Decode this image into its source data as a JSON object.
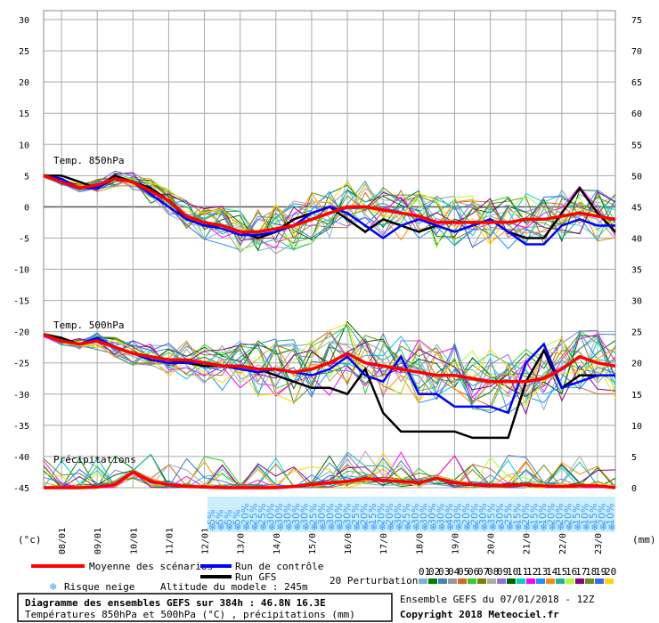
{
  "chart_data": {
    "type": "line",
    "title": "Diagramme des ensembles GEFS sur 384h : 46.8N 16.3E",
    "subtitle": "Températures 850hPa et 500hPa (°C) , précipitations (mm)",
    "left_axis": {
      "unit": "(°c)",
      "ticks": [
        30,
        25,
        20,
        15,
        10,
        5,
        0,
        -5,
        -10,
        -15,
        -20,
        -25,
        -30,
        -35,
        -40,
        -45
      ]
    },
    "right_axis": {
      "unit": "(mm)",
      "ticks": [
        75,
        70,
        65,
        60,
        55,
        50,
        45,
        40,
        35,
        30,
        25,
        20,
        15,
        10,
        5,
        0
      ]
    },
    "x_ticks": [
      "08/01",
      "09/01",
      "10/01",
      "11/01",
      "12/01",
      "13/01",
      "14/01",
      "15/01",
      "16/01",
      "17/01",
      "18/01",
      "19/01",
      "20/01",
      "21/01",
      "22/01",
      "23/01"
    ],
    "panel_labels": [
      "Temp. 850hPa",
      "Temp. 500hPa",
      "Précipitations"
    ],
    "snow_risk_percent": [
      "5%",
      "5%",
      "5%",
      "5%",
      "20%",
      "25%",
      "25%",
      "30%",
      "30%",
      "30%",
      "30%",
      "30%",
      "25%",
      "30%",
      "30%",
      "30%",
      "30%",
      "25%",
      "20%",
      "15%",
      "20%",
      "20%",
      "30%",
      "25%",
      "30%",
      "30%",
      "30%",
      "30%",
      "40%",
      "30%",
      "20%",
      "20%",
      "30%",
      "35%",
      "30%",
      "25%",
      "15%",
      "20%",
      "15%",
      "10%",
      "20%",
      "20%",
      "20%",
      "15%",
      "10%",
      "15%",
      "20%",
      "10%"
    ],
    "x_hours": [
      0,
      12,
      24,
      36,
      48,
      60,
      72,
      84,
      96,
      108,
      120,
      132,
      144,
      156,
      168,
      180,
      192,
      204,
      216,
      228,
      240,
      252,
      264,
      276,
      288,
      300,
      312,
      324,
      336,
      348,
      360,
      372,
      384
    ],
    "t850_mean": [
      5,
      4,
      3,
      3.5,
      4.5,
      4,
      2.5,
      1,
      -1.5,
      -2.5,
      -3,
      -4,
      -4,
      -3.5,
      -3,
      -2,
      -1,
      0,
      0,
      -0.5,
      -1,
      -1.5,
      -2.5,
      -2.5,
      -2.5,
      -2.5,
      -2.5,
      -2,
      -2,
      -1.5,
      -1,
      -1.5,
      -2
    ],
    "t850_control": [
      5,
      4.5,
      3,
      3,
      4.5,
      4,
      2,
      0,
      -2,
      -3,
      -3.5,
      -4.5,
      -4.5,
      -4,
      -3,
      -1,
      0,
      -1,
      -3,
      -5,
      -3,
      -2,
      -3,
      -4,
      -3,
      -2,
      -4,
      -6,
      -6,
      -3,
      -2,
      -3,
      -3
    ],
    "t850_gfs": [
      5,
      5,
      4,
      3,
      5,
      4,
      3,
      1,
      -2,
      -3,
      -3,
      -4,
      -5,
      -4,
      -2,
      -1,
      0,
      -2,
      -4,
      -2,
      -3,
      -4,
      -3,
      -4,
      -3,
      -2,
      -4,
      -5,
      -5,
      -1,
      3,
      -1,
      -4
    ],
    "t500_mean": [
      -20.5,
      -21.5,
      -22,
      -21.5,
      -22.5,
      -23.5,
      -24,
      -24.5,
      -24.5,
      -25,
      -25.5,
      -25.5,
      -26,
      -26,
      -26.5,
      -26,
      -25,
      -23.5,
      -25,
      -25.5,
      -26,
      -26.5,
      -27,
      -27,
      -27.5,
      -28,
      -28,
      -28,
      -27.5,
      -26,
      -24,
      -25,
      -25.5
    ],
    "t500_control": [
      -20.5,
      -21.5,
      -22,
      -21,
      -22.5,
      -23.5,
      -24.5,
      -25,
      -25,
      -25,
      -25.5,
      -26,
      -26.5,
      -26,
      -26.5,
      -27,
      -26,
      -24,
      -27,
      -28,
      -24,
      -30,
      -30,
      -32,
      -32,
      -32,
      -33,
      -25,
      -22,
      -29,
      -28,
      -27,
      -27
    ],
    "t500_gfs": [
      -20.5,
      -21,
      -22,
      -21.5,
      -22.5,
      -23.5,
      -24,
      -24.5,
      -25,
      -25.5,
      -25.5,
      -25.5,
      -26,
      -27,
      -28,
      -29,
      -29,
      -30,
      -26,
      -33,
      -36,
      -36,
      -36,
      -36,
      -37,
      -37,
      -37,
      -28,
      -23,
      -29,
      -27,
      -27,
      -27
    ],
    "precip_mean": [
      0,
      0,
      0,
      0.1,
      0.5,
      2.5,
      1,
      0.5,
      0.2,
      0.1,
      0,
      0,
      0,
      0,
      0.2,
      0.5,
      0.8,
      1,
      1.5,
      1.2,
      1,
      0.8,
      1.5,
      0.8,
      0.5,
      0.4,
      0.3,
      0.5,
      0.3,
      0.2,
      0.3,
      0.3,
      0
    ],
    "legend": {
      "mean": "Moyenne des scénarios",
      "control": "Run de contrôle",
      "gfs": "Run GFS",
      "perturbations": "20 Perturbations",
      "snow": "Risque neige",
      "altitude": "Altitude du modele : 245m"
    },
    "perturbation_numbers": [
      "01",
      "02",
      "03",
      "04",
      "05",
      "06",
      "07",
      "08",
      "09",
      "10",
      "11",
      "12",
      "13",
      "14",
      "15",
      "16",
      "17",
      "18",
      "19",
      "20"
    ],
    "run_info": "Ensemble GEFS du 07/01/2018 - 12Z",
    "copyright": "Copyright 2018 Meteociel.fr",
    "colors": {
      "mean": "#ff0000",
      "control": "#0000ff",
      "gfs": "#000000",
      "perturbations": [
        "#7fb2cc",
        "#008000",
        "#4682b4",
        "#999999",
        "#d2691e",
        "#32cd32",
        "#808000",
        "#aaaaaa",
        "#9370db",
        "#006400",
        "#00ced1",
        "#ff00ff",
        "#1e90ff",
        "#ff8c00",
        "#20b2aa",
        "#adff2f",
        "#8b008b",
        "#6b8e23",
        "#4169e1",
        "#ffd700"
      ]
    }
  }
}
